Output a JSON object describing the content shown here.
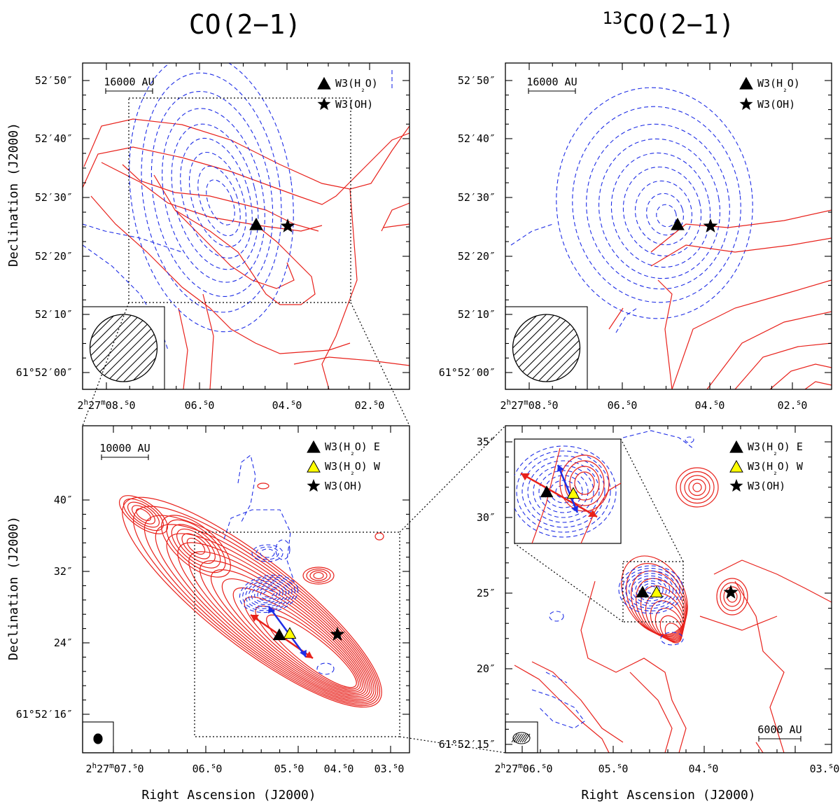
{
  "chart_data": [
    {
      "type": "contour",
      "panel": "top-left",
      "title": "CO(2−1)",
      "xlabel": "",
      "ylabel": "Declination (J2000)",
      "xticks": [
        "2h27m08.0s",
        "06.0s",
        "04.0s",
        "02.0s"
      ],
      "yticks": [
        "52′50″",
        "52′40″",
        "52′30″",
        "52′20″",
        "52′10″",
        "61°52′00″"
      ],
      "scale_bar": "16000 AU",
      "legend": [
        {
          "symbol": "triangle-black",
          "label": "W3(H₂O)"
        },
        {
          "symbol": "star",
          "label": "W3(OH)"
        }
      ],
      "series": [
        {
          "name": "redshifted",
          "color": "#e8211b",
          "style": "solid"
        },
        {
          "name": "blueshifted",
          "color": "#1f2ee6",
          "style": "dashed"
        }
      ]
    },
    {
      "type": "contour",
      "panel": "top-right",
      "title": "13CO(2−1)",
      "title_sup": "13",
      "title_main": "CO(2−1)",
      "xticks": [
        "2h27m08.0s",
        "06.0s",
        "04.0s",
        "02.0s"
      ],
      "yticks": [
        "52′50″",
        "52′40″",
        "52′30″",
        "52′20″",
        "52′10″",
        "61°52′00″"
      ],
      "scale_bar": "16000 AU",
      "legend": [
        {
          "symbol": "triangle-black",
          "label": "W3(H₂O)"
        },
        {
          "symbol": "star",
          "label": "W3(OH)"
        }
      ]
    },
    {
      "type": "contour",
      "panel": "bottom-left",
      "xlabel": "Right Ascension (J2000)",
      "ylabel": "Declination (J2000)",
      "xticks": [
        "2h27m07.0s",
        "06.0s",
        "05.0s",
        "04.0s",
        "03.0s"
      ],
      "yticks": [
        "40″",
        "32″",
        "24″",
        "61°52′16″"
      ],
      "scale_bar": "10000 AU",
      "legend": [
        {
          "symbol": "triangle-black",
          "label": "W3(H₂O) E"
        },
        {
          "symbol": "triangle-yellow",
          "label": "W3(H₂O) W"
        },
        {
          "symbol": "star",
          "label": "W3(OH)"
        }
      ]
    },
    {
      "type": "contour",
      "panel": "bottom-right",
      "xlabel": "Right Ascension (J2000)",
      "xticks": [
        "2h27m06.0s",
        "05.0s",
        "04.0s",
        "03.0s"
      ],
      "yticks": [
        "35″",
        "30″",
        "25″",
        "20″",
        "61°52′15″"
      ],
      "scale_bar": "6000 AU",
      "legend": [
        {
          "symbol": "triangle-black",
          "label": "W3(H₂O) E"
        },
        {
          "symbol": "triangle-yellow",
          "label": "W3(H₂O) W"
        },
        {
          "symbol": "star",
          "label": "W3(OH)"
        }
      ]
    }
  ],
  "text": {
    "h2o": "W3(H",
    "sub2": "2",
    "o": "O)",
    "oh": "W3(OH)",
    "e": " E",
    "w": " W",
    "ra": "Right Ascension (J2000)",
    "dec": "Declination (J2000)"
  },
  "colors": {
    "red": "#e8211b",
    "blue": "#1f2ee6",
    "yellow": "#ffff00"
  }
}
